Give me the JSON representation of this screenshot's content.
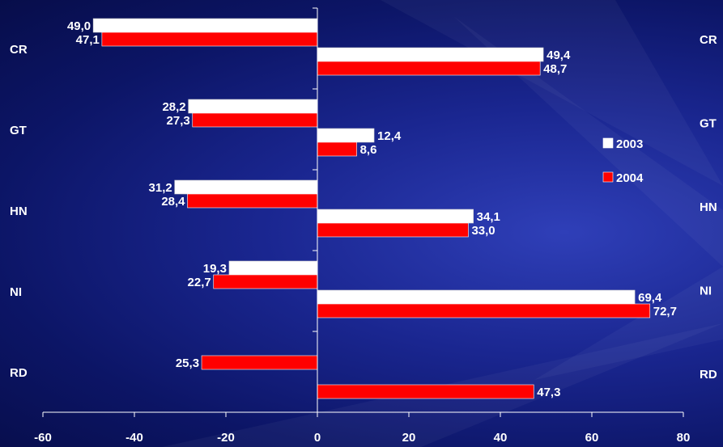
{
  "chart_data": {
    "type": "bar",
    "orientation": "horizontal",
    "categories": [
      "CR",
      "GT",
      "HN",
      "NI",
      "RD"
    ],
    "series": [
      {
        "name": "2003",
        "color": "#ffffff",
        "neg": [
          -49.0,
          -28.2,
          -31.2,
          -19.3,
          null
        ],
        "neg_labels": [
          "49,0",
          "28,2",
          "31,2",
          "19,3",
          ""
        ],
        "pos": [
          49.4,
          12.4,
          34.1,
          69.4,
          null
        ],
        "pos_labels": [
          "49,4",
          "12,4",
          "34,1",
          "69,4",
          ""
        ]
      },
      {
        "name": "2004",
        "color": "#ff0000",
        "neg": [
          -47.1,
          -27.3,
          -28.4,
          -22.7,
          -25.3
        ],
        "neg_labels": [
          "47,1",
          "27,3",
          "28,4",
          "22,7",
          "25,3"
        ],
        "pos": [
          48.7,
          8.6,
          33.0,
          72.7,
          47.3
        ],
        "pos_labels": [
          "48,7",
          "8,6",
          "33,0",
          "72,7",
          "47,3"
        ]
      }
    ],
    "x_ticks": [
      "-60",
      "-40",
      "-20",
      "0",
      "20",
      "40",
      "60",
      "80"
    ],
    "x_tick_values": [
      -60,
      -40,
      -20,
      0,
      20,
      40,
      60,
      80
    ],
    "xlim": [
      -60,
      80
    ],
    "legend": [
      "2003",
      "2004"
    ],
    "legend_position": "right",
    "grid": false,
    "title": "",
    "xlabel": "",
    "ylabel": ""
  }
}
